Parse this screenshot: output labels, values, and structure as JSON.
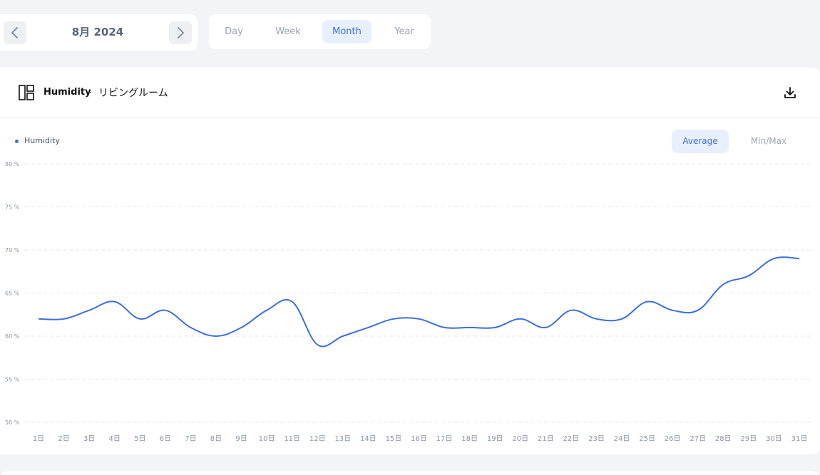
{
  "date_nav": {
    "label": "8月 2024",
    "prev_icon": "chevron-left-icon",
    "next_icon": "chevron-right-icon"
  },
  "period_tabs": [
    {
      "label": "Day",
      "active": false
    },
    {
      "label": "Week",
      "active": false
    },
    {
      "label": "Month",
      "active": true
    },
    {
      "label": "Year",
      "active": false
    }
  ],
  "card": {
    "title": "Humidity",
    "separator": "-",
    "room": "リビングルーム",
    "layout_icon": "layout-icon",
    "download_icon": "download-icon"
  },
  "legend": {
    "label": "Humidity"
  },
  "modes": [
    {
      "label": "Average",
      "active": true
    },
    {
      "label": "Min/Max",
      "active": false
    }
  ],
  "colors": {
    "accent": "#3b6fd9",
    "grid": "#e5e7eb",
    "tick": "#8a93a6"
  },
  "chart_data": {
    "type": "line",
    "x": [
      "1日",
      "2日",
      "3日",
      "4日",
      "5日",
      "6日",
      "7日",
      "8日",
      "9日",
      "10日",
      "11日",
      "12日",
      "13日",
      "14日",
      "15日",
      "16日",
      "17日",
      "18日",
      "19日",
      "20日",
      "21日",
      "22日",
      "23日",
      "24日",
      "25日",
      "26日",
      "27日",
      "28日",
      "29日",
      "30日",
      "31日"
    ],
    "series": [
      {
        "name": "Humidity",
        "values": [
          62,
          62,
          63,
          64,
          62,
          63,
          61,
          60,
          61,
          63,
          64,
          59,
          60,
          61,
          62,
          62,
          61,
          61,
          61,
          62,
          61,
          63,
          62,
          62,
          64,
          63,
          63,
          66,
          67,
          69,
          69
        ]
      }
    ],
    "y_ticks": [
      "80 %",
      "75 %",
      "70 %",
      "65 %",
      "60 %",
      "55 %",
      "50 %"
    ],
    "ylim": [
      50,
      80
    ],
    "grid": true
  }
}
